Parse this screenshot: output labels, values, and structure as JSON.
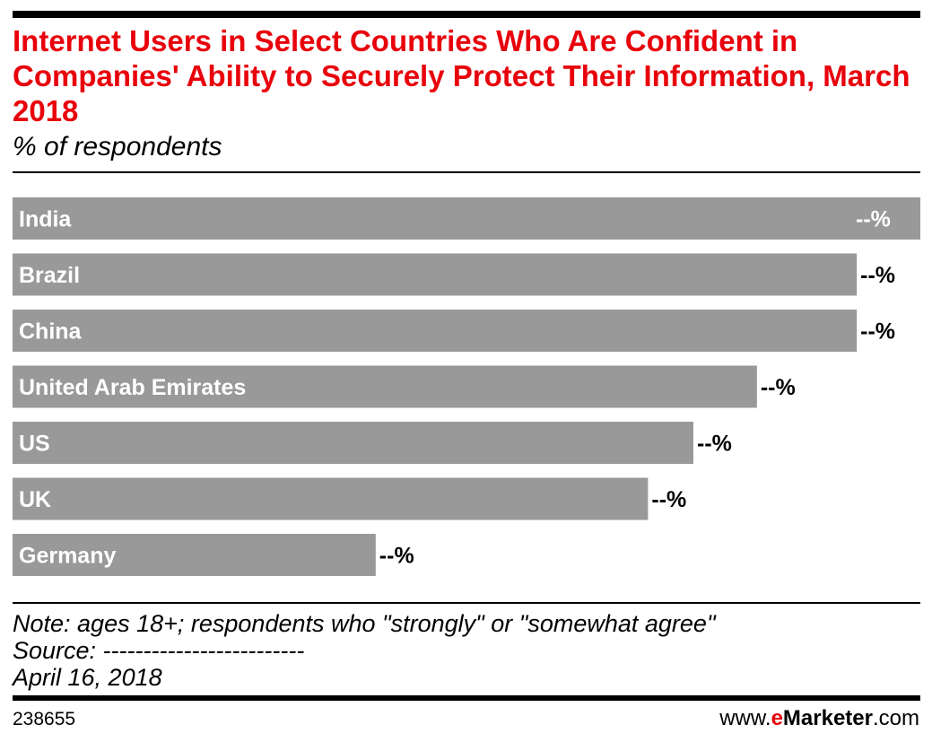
{
  "chart_data": {
    "type": "bar",
    "orientation": "horizontal",
    "title": "Internet Users in Select Countries Who Are Confident in Companies' Ability to Securely Protect Their Information, March 2018",
    "subtitle": "% of respondents",
    "categories": [
      "India",
      "Brazil",
      "China",
      "United Arab Emirates",
      "US",
      "UK",
      "Germany"
    ],
    "values": [
      100,
      93,
      93,
      82,
      75,
      70,
      40
    ],
    "value_labels": [
      "--%",
      "--%",
      "--%",
      "--%",
      "--%",
      "--%",
      "--%"
    ],
    "value_label_inside": [
      true,
      false,
      false,
      false,
      false,
      false,
      false
    ],
    "bar_color": "#999999",
    "xlim": [
      0,
      100
    ],
    "grid": false,
    "legend": "none"
  },
  "notes": {
    "note": "Note: ages 18+; respondents who \"strongly\" or \"somewhat agree\"",
    "source": "Source: -------------------------",
    "date": "April 16, 2018"
  },
  "footer": {
    "chart_id": "238655",
    "brand_prefix": "www.",
    "brand_e": "e",
    "brand_name": "Marketer",
    "brand_suffix": ".com"
  },
  "colors": {
    "title": "#e8000b",
    "bar": "#999999",
    "brand_accent": "#e8000b"
  }
}
